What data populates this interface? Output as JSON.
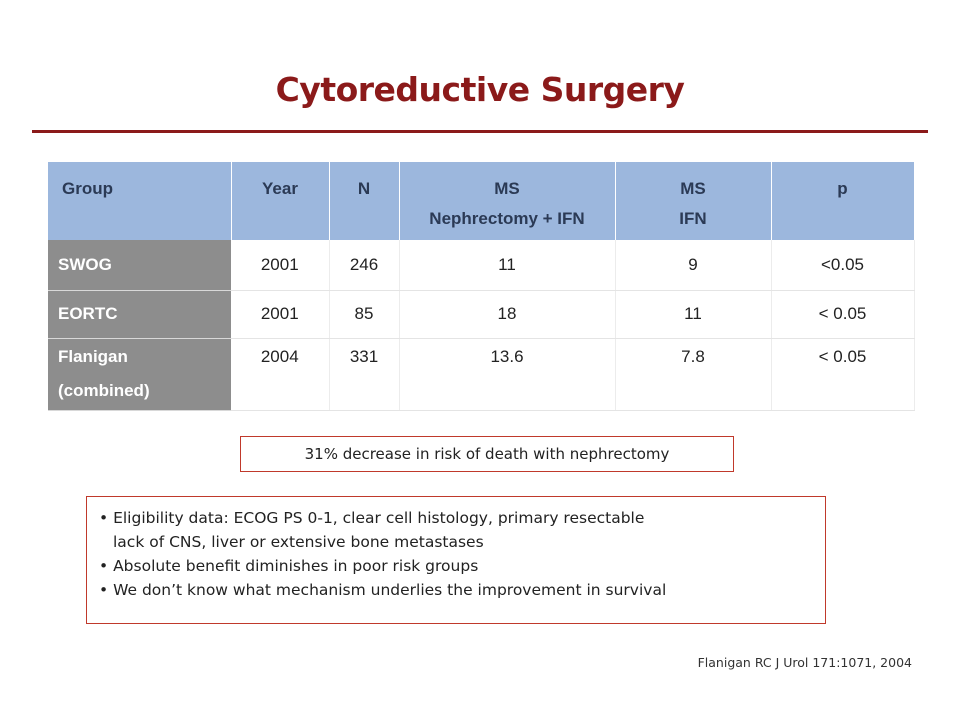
{
  "slide": {
    "title": "Cytoreductive Surgery",
    "accent_color": "#8b1a1a",
    "header_color": "#9cb7dd",
    "rowhead_color": "#8d8d8d"
  },
  "table": {
    "headers": {
      "group": "Group",
      "year": "Year",
      "n": "N",
      "ms_neph_line1": "MS",
      "ms_neph_line2": "Nephrectomy + IFN",
      "ms_ifn_line1": "MS",
      "ms_ifn_line2": "IFN",
      "p": "p"
    },
    "rows": [
      {
        "group": "SWOG",
        "year": "2001",
        "n": "246",
        "ms_neph": "11",
        "ms_ifn": "9",
        "p": "<0.05"
      },
      {
        "group": "EORTC",
        "year": "2001",
        "n": "85",
        "ms_neph": "18",
        "ms_ifn": "11",
        "p": "< 0.05"
      },
      {
        "group_line1": "Flanigan",
        "group_line2": "(combined)",
        "year": "2004",
        "n": "331",
        "ms_neph": "13.6",
        "ms_ifn": "7.8",
        "p": "< 0.05"
      }
    ]
  },
  "callout": "31% decrease in risk of death with nephrectomy",
  "bullets": [
    {
      "line1": "• Eligibility data: ECOG PS 0-1, clear cell histology, primary resectable",
      "line2": "lack of CNS, liver or extensive bone metastases"
    },
    {
      "line1": "• Absolute benefit diminishes in poor risk groups"
    },
    {
      "line1": "• We don’t know what mechanism underlies the improvement in survival"
    }
  ],
  "citation": "Flanigan RC J Urol 171:1071, 2004"
}
